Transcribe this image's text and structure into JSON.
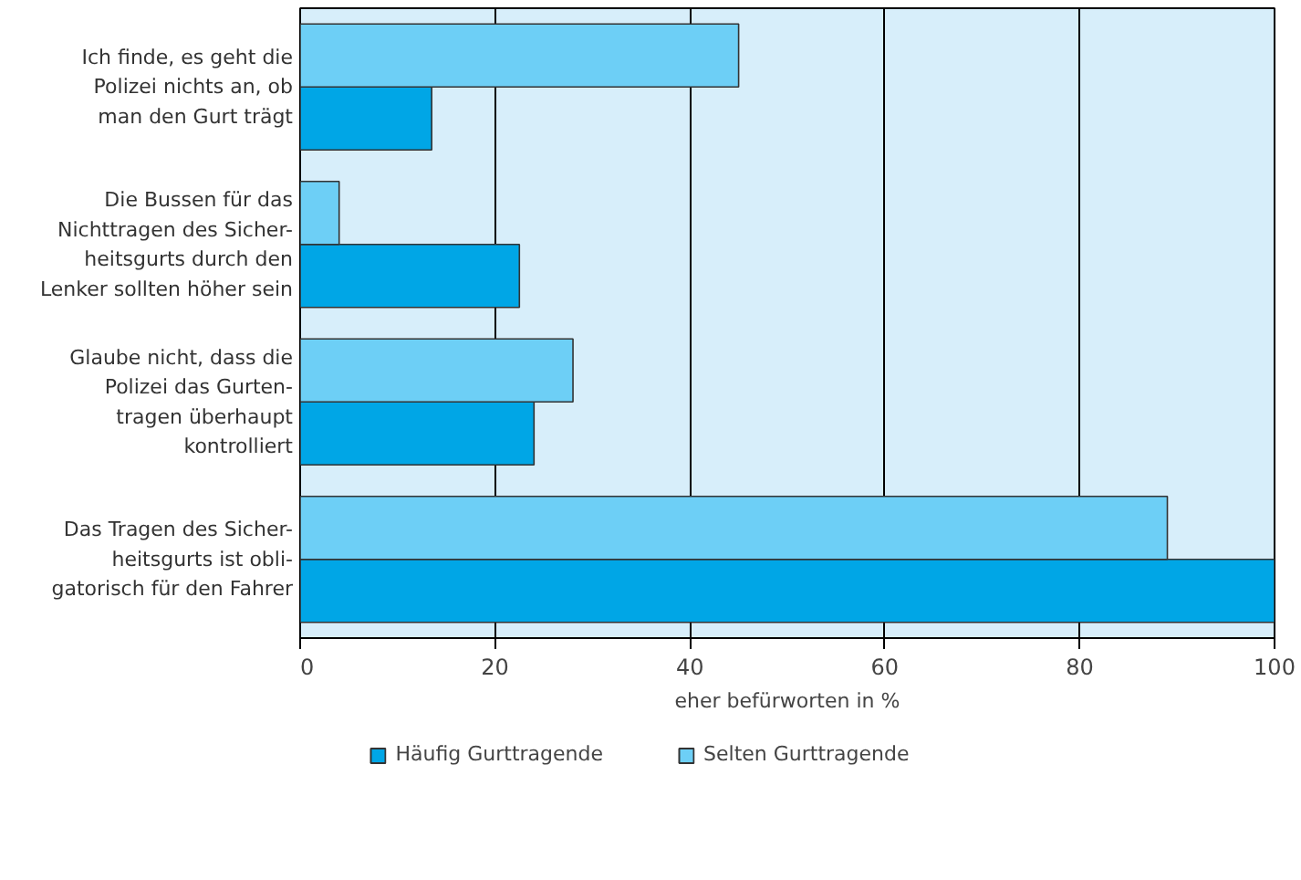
{
  "chart_data": {
    "type": "bar",
    "orientation": "horizontal",
    "xlabel": "eher befürworten in %",
    "categories": [
      "Ich finde, es geht die\nPolizei nichts an, ob\nman den Gurt trägt",
      "Die Bussen für das\nNichttragen des Sicher-\nheitsgurts durch den\nLenker sollten höher sein",
      "Glaube nicht, dass die\nPolizei das Gurten-\ntragen überhaupt\nkontrolliert",
      "Das Tragen des Sicher-\nheitsgurts ist obli-\ngatorisch für den Fahrer"
    ],
    "series": [
      {
        "name": "Häufig Gurttragende",
        "color": "#00a6e6",
        "values": [
          13.5,
          22.5,
          24,
          100
        ]
      },
      {
        "name": "Selten Gurttragende",
        "color": "#6dcff6",
        "values": [
          45,
          4,
          28,
          89
        ]
      }
    ],
    "xlim": [
      0,
      100
    ],
    "xticks": [
      0,
      20,
      40,
      60,
      80,
      100
    ],
    "grid": "x",
    "legend": "bottom"
  }
}
